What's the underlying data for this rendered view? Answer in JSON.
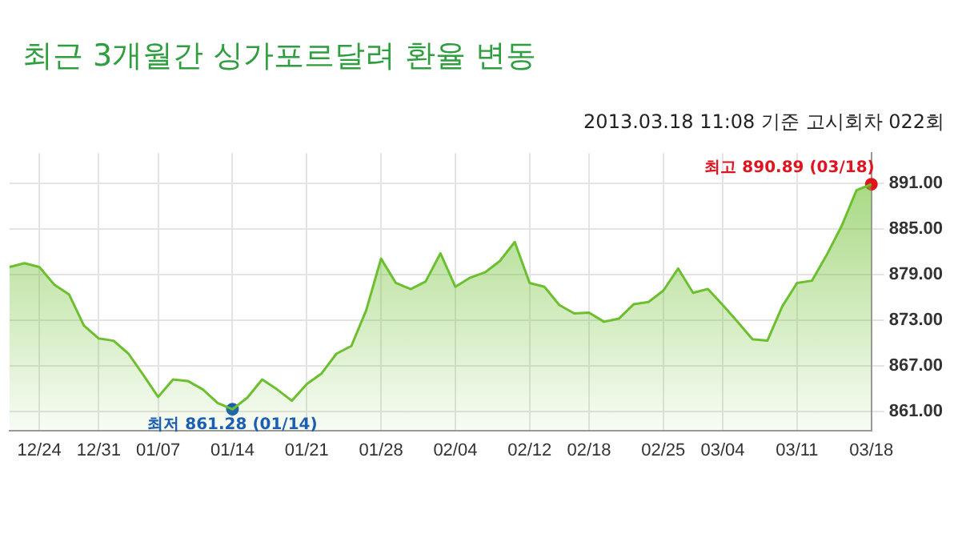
{
  "chart_data": {
    "type": "area",
    "title": "최근 3개월간 싱가포르달려 환율 변동",
    "subtitle": "2013.03.18 11:08 기준 고시회차 022회",
    "categories": [
      null,
      null,
      "12/24",
      null,
      null,
      null,
      "12/31",
      null,
      null,
      null,
      "01/07",
      null,
      null,
      null,
      null,
      "01/14",
      null,
      null,
      null,
      null,
      "01/21",
      null,
      null,
      null,
      null,
      "01/28",
      null,
      null,
      null,
      null,
      "02/04",
      null,
      null,
      null,
      null,
      "02/12",
      null,
      null,
      null,
      "02/18",
      null,
      null,
      null,
      null,
      "02/25",
      null,
      null,
      null,
      "03/04",
      null,
      null,
      null,
      null,
      "03/11",
      null,
      null,
      null,
      null,
      "03/18"
    ],
    "series": [
      {
        "color": "#6cbf2e",
        "marker": "none",
        "values": [
          880.0,
          880.5,
          880.0,
          877.7,
          876.4,
          872.3,
          870.6,
          870.3,
          868.6,
          865.8,
          862.9,
          865.2,
          865.0,
          863.9,
          862.1,
          861.28,
          862.8,
          865.2,
          863.9,
          862.4,
          864.6,
          866.0,
          868.6,
          869.6,
          874.3,
          881.1,
          877.9,
          877.1,
          878.1,
          881.8,
          877.4,
          878.6,
          879.3,
          880.8,
          883.3,
          877.9,
          877.4,
          875.0,
          873.9,
          874.0,
          872.8,
          873.2,
          875.1,
          875.4,
          876.9,
          879.8,
          876.6,
          877.1,
          875.0,
          872.8,
          870.5,
          870.3,
          874.8,
          877.9,
          878.2,
          881.6,
          885.4,
          890.1,
          890.89
        ]
      },
      {
        "type": "scatter",
        "marker": "circle",
        "x": [
          "01/14",
          "03/18"
        ],
        "values": [
          861.28,
          890.89
        ],
        "colors": [
          "#1a5fb4",
          "#e0141e"
        ]
      }
    ],
    "annotations": [
      {
        "text": "최저 861.28 (01/14)",
        "x": "01/14",
        "y": 861.28
      },
      {
        "text": "최고 890.89 (03/18)",
        "x": "03/18",
        "y": 890.89
      }
    ],
    "ylim": [
      858.5,
      895
    ],
    "yticks": [
      {
        "value": 861,
        "label": "861.00"
      },
      {
        "value": 867,
        "label": "867.00"
      },
      {
        "value": 873,
        "label": "873.00"
      },
      {
        "value": 879,
        "label": "879.00"
      },
      {
        "value": 885,
        "label": "885.00"
      },
      {
        "value": 891,
        "label": "891.00"
      }
    ],
    "grid": true,
    "legend": false
  }
}
